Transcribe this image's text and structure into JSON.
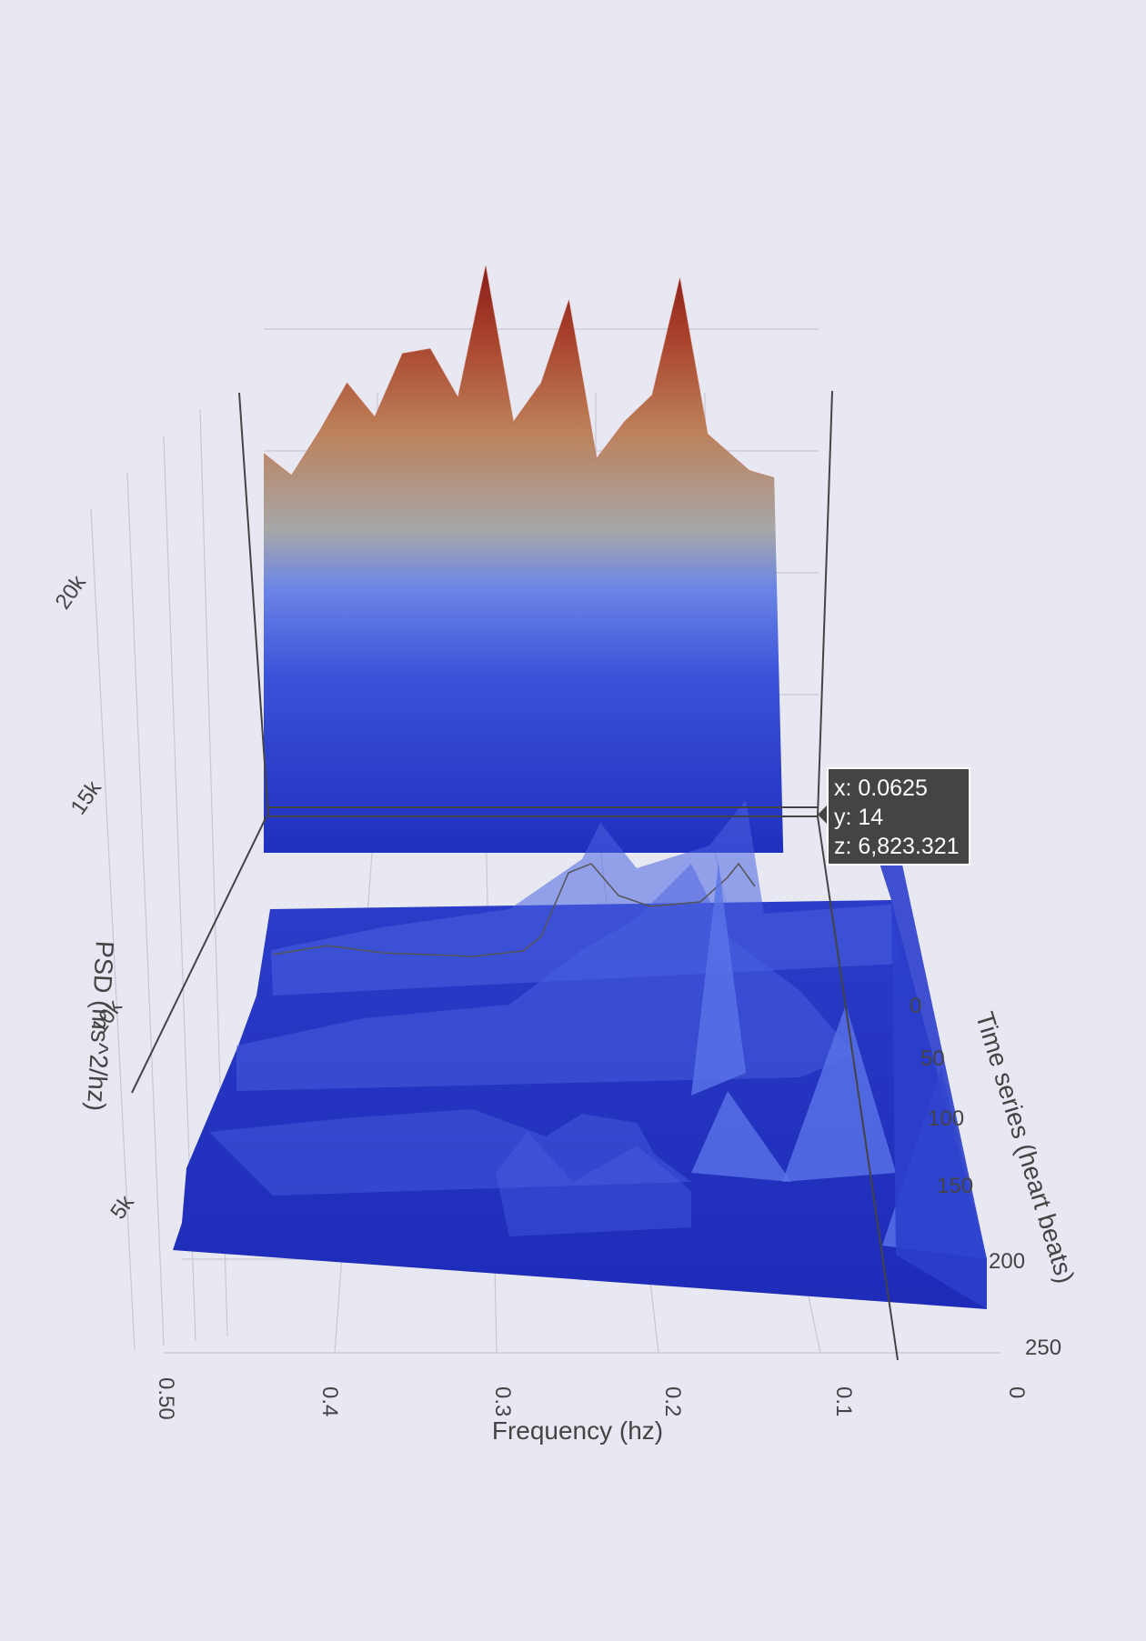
{
  "chart_data": {
    "type": "surface",
    "x_axis": {
      "title": "Frequency (hz)",
      "tick_labels": [
        "0.50",
        "0.4",
        "0.3",
        "0.2",
        "0.1",
        "0"
      ],
      "range": [
        0,
        0.5
      ]
    },
    "y_axis": {
      "title": "Time series (heart beats)",
      "tick_labels": [
        "0",
        "50",
        "100",
        "150",
        "200",
        "250"
      ],
      "range": [
        0,
        250
      ]
    },
    "z_axis": {
      "title": "PSD (ms^2/hz)",
      "tick_labels": [
        "5k",
        "10k",
        "15k",
        "20k"
      ],
      "range": [
        0,
        22000
      ]
    },
    "colorscale": [
      "#1f2fbf",
      "#3b52d8",
      "#6b85e6",
      "#a7a7a8",
      "#bd8058",
      "#a8412c",
      "#8a1d1a"
    ],
    "back_ridge": {
      "description_y": 0,
      "x": [
        0.5,
        0.475,
        0.45,
        0.425,
        0.4,
        0.375,
        0.35,
        0.325,
        0.3,
        0.275,
        0.25,
        0.225,
        0.2,
        0.175,
        0.15,
        0.125,
        0.1,
        0.0625,
        0.04
      ],
      "z": [
        14900,
        14000,
        15800,
        17800,
        16400,
        19000,
        19200,
        17200,
        22600,
        16200,
        17800,
        21200,
        14700,
        16200,
        17300,
        22100,
        15700,
        14200,
        13900
      ]
    },
    "hover": {
      "x": "x: 0.0625",
      "y": "y: 14",
      "z": "z: 6,823.321"
    },
    "grid": true
  }
}
